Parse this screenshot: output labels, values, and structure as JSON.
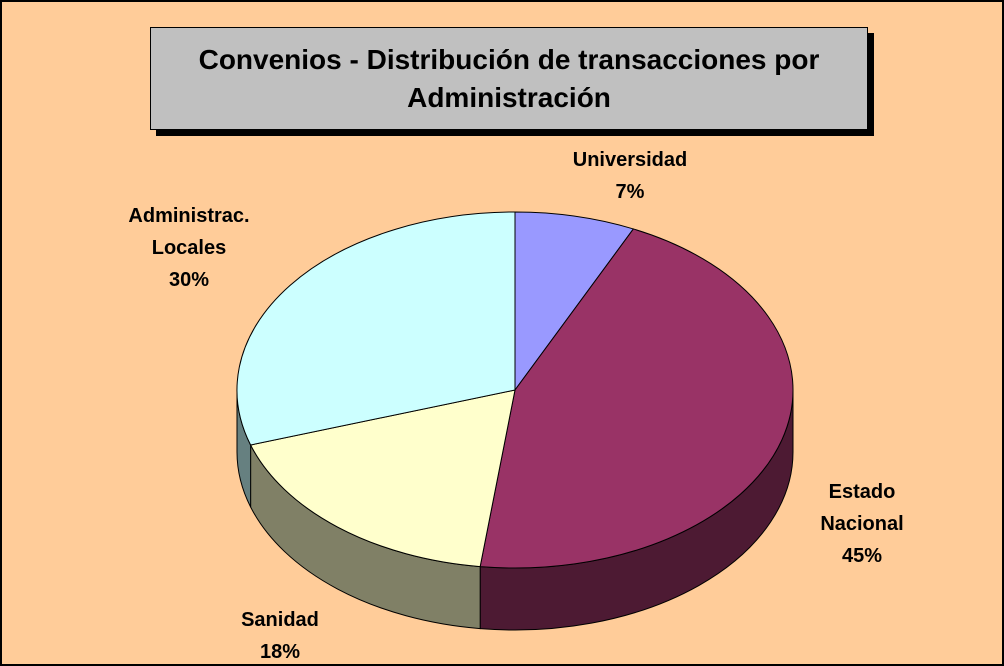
{
  "chart_data": {
    "type": "pie",
    "title": "Convenios - Distribución de transacciones por Administración",
    "categories": [
      "Universidad",
      "Estado Nacional",
      "Sanidad",
      "Administrac. Locales"
    ],
    "values": [
      7,
      45,
      18,
      30
    ],
    "value_labels": [
      "7%",
      "45%",
      "18%",
      "30%"
    ],
    "colors": [
      "#9999ff",
      "#993366",
      "#ffffcc",
      "#ccffff"
    ],
    "three_d": true
  }
}
